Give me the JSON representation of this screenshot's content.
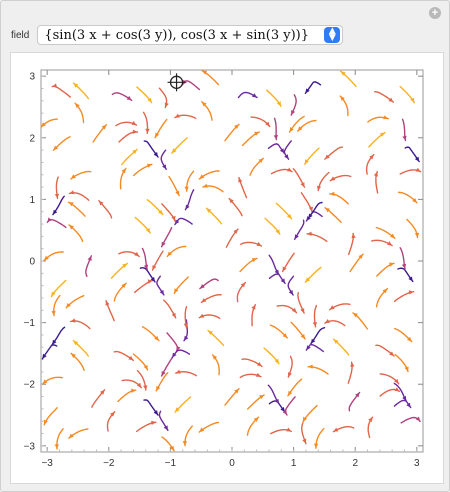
{
  "ui": {
    "plus_symbol": "+",
    "control_label": "field",
    "field_value": "{sin(3 x + cos(3 y)), cos(3 x + sin(3 y))}",
    "chevron": "⌃⌄"
  },
  "colors": {
    "panel": "#efefef",
    "plot_bg": "#ffffff",
    "palette": [
      "#3b1a8f",
      "#6a2a9e",
      "#b0417e",
      "#e0654a",
      "#f58a22",
      "#f9b21a"
    ]
  },
  "chart_data": {
    "type": "stream_plot",
    "field": "{sin(3 x + cos(3 y)), cos(3 x + sin(3 y))}",
    "x_range": [
      -3.1,
      3.1
    ],
    "y_range": [
      -3.1,
      3.1
    ],
    "x_ticks": [
      -3,
      -2,
      -1,
      0,
      1,
      2,
      3
    ],
    "y_ticks": [
      -3,
      -2,
      -1,
      0,
      1,
      2,
      3
    ],
    "locator_point": [
      -0.9,
      2.9
    ],
    "grid": false
  }
}
